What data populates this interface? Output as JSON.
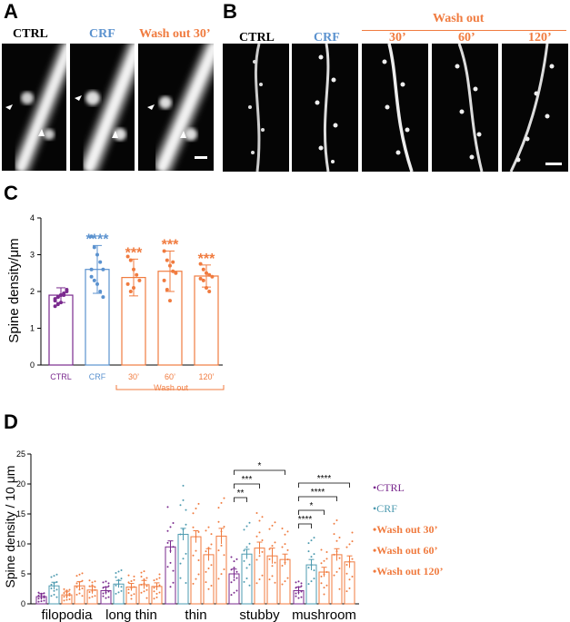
{
  "colors": {
    "ctrl": "#7a2a8e",
    "crf": "#5b92cf",
    "wash": "#f07b3f",
    "crf_d": "#4e9bb0",
    "black": "#000000"
  },
  "panelA": {
    "letter": "A",
    "labels": [
      "CTRL",
      "CRF",
      "Wash out 30’"
    ]
  },
  "panelB": {
    "letter": "B",
    "wash_header": "Wash out",
    "labels": [
      "CTRL",
      "CRF",
      "30’",
      "60’",
      "120’"
    ]
  },
  "panelC": {
    "letter": "C",
    "chart_data": {
      "type": "bar",
      "ylabel": "Spine density/μm",
      "ylim": [
        0,
        4
      ],
      "yticks": [
        0,
        1,
        2,
        3,
        4
      ],
      "categories": [
        "CTRL",
        "CRF",
        "30’",
        "60’",
        "120’"
      ],
      "values": [
        1.9,
        2.6,
        2.38,
        2.55,
        2.42
      ],
      "sd": [
        0.2,
        0.65,
        0.5,
        0.55,
        0.3
      ],
      "significance": [
        "",
        "****",
        "***",
        "***",
        "***"
      ],
      "group_label": "Wash out",
      "points": [
        [
          1.75,
          1.85,
          1.9,
          1.95,
          2.0,
          1.8,
          1.65,
          1.7,
          1.9,
          2.05,
          1.6,
          1.85,
          1.9
        ],
        [
          3.5,
          3.2,
          3.0,
          2.8,
          2.6,
          2.4,
          2.3,
          2.2,
          2.0,
          1.85,
          2.6
        ],
        [
          2.95,
          2.85,
          2.6,
          2.45,
          2.3,
          2.2,
          2.0,
          2.1
        ],
        [
          3.1,
          2.85,
          2.7,
          2.55,
          2.5,
          2.3,
          2.05,
          1.75,
          2.8
        ],
        [
          2.75,
          2.6,
          2.5,
          2.45,
          2.4,
          2.35,
          2.3,
          2.1,
          2.0
        ]
      ]
    }
  },
  "panelD": {
    "letter": "D",
    "chart_data": {
      "type": "bar",
      "ylabel": "Spine density / 10 μm",
      "ylim": [
        0,
        25
      ],
      "yticks": [
        0,
        5,
        10,
        15,
        20,
        25
      ],
      "categories": [
        "filopodia",
        "long thin",
        "thin",
        "stubby",
        "mushroom"
      ],
      "series": [
        {
          "name": "CTRL",
          "values": [
            1.2,
            2.2,
            9.5,
            5.0,
            2.2
          ]
        },
        {
          "name": "CRF",
          "values": [
            3.0,
            3.3,
            11.6,
            8.3,
            6.5
          ]
        },
        {
          "name": "Wash out 30’",
          "values": [
            1.5,
            2.8,
            11.2,
            9.3,
            5.3
          ]
        },
        {
          "name": "Wash out 60’",
          "values": [
            3.0,
            3.2,
            8.2,
            8.0,
            8.2
          ]
        },
        {
          "name": "Wash out 120’",
          "values": [
            2.3,
            2.9,
            11.3,
            7.4,
            7.0
          ]
        }
      ],
      "sem": [
        [
          0.5,
          0.6,
          1.0,
          0.8,
          0.6
        ],
        [
          0.6,
          0.6,
          1.0,
          0.8,
          0.9
        ],
        [
          0.6,
          0.6,
          1.0,
          1.0,
          0.8
        ],
        [
          0.7,
          0.7,
          1.0,
          1.3,
          1.0
        ],
        [
          0.6,
          0.6,
          1.3,
          0.9,
          1.0
        ]
      ],
      "brackets": [
        {
          "category": "stubby",
          "from": 0,
          "to": 4,
          "label": "*"
        },
        {
          "category": "stubby",
          "from": 0,
          "to": 2,
          "label": "***"
        },
        {
          "category": "stubby",
          "from": 0,
          "to": 1,
          "label": "**"
        },
        {
          "category": "mushroom",
          "from": 0,
          "to": 4,
          "label": "****"
        },
        {
          "category": "mushroom",
          "from": 0,
          "to": 3,
          "label": "****"
        },
        {
          "category": "mushroom",
          "from": 0,
          "to": 2,
          "label": "*"
        },
        {
          "category": "mushroom",
          "from": 0,
          "to": 1,
          "label": "****"
        }
      ],
      "legend": [
        "CTRL",
        "CRF",
        "Wash out 30’",
        "Wash out 60’",
        "Wash out 120’"
      ]
    }
  }
}
